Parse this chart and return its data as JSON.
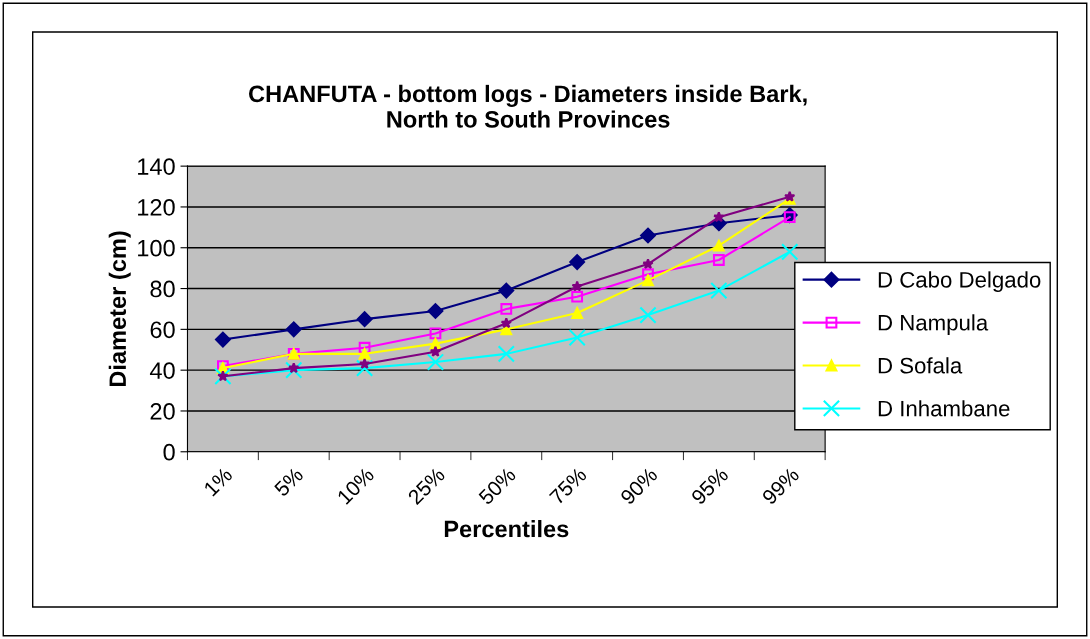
{
  "chart_data": {
    "type": "line",
    "title": "CHANFUTA - bottom logs - Diameters inside Bark,\nNorth to South Provinces",
    "xlabel": "Percentiles",
    "ylabel": "Diameter (cm)",
    "categories": [
      "1%",
      "5%",
      "10%",
      "25%",
      "50%",
      "75%",
      "90%",
      "95%",
      "99%"
    ],
    "series": [
      {
        "name": "D Cabo Delgado",
        "color": "#000080",
        "marker": "diamond",
        "values": [
          55,
          60,
          65,
          69,
          79,
          93,
          106,
          112,
          116
        ]
      },
      {
        "name": "D Nampula",
        "color": "#ff00ff",
        "marker": "square",
        "values": [
          42,
          48,
          51,
          58,
          70,
          76,
          87,
          94,
          115
        ]
      },
      {
        "name": "D Sofala",
        "color": "#ffff00",
        "marker": "triangle",
        "values": [
          41,
          48,
          48,
          53,
          60,
          68,
          84,
          101,
          124
        ]
      },
      {
        "name": "D Inhambane",
        "color": "#00ffff",
        "marker": "cross",
        "values": [
          37,
          40,
          41,
          44,
          48,
          56,
          67,
          79,
          98
        ]
      },
      {
        "color": "#800080",
        "marker": "star",
        "values": [
          37,
          41,
          43,
          49,
          63,
          81,
          92,
          115,
          125
        ]
      }
    ],
    "ylim": [
      0,
      140
    ],
    "yticks": [
      0,
      20,
      40,
      60,
      80,
      100,
      120,
      140
    ],
    "grid": "y",
    "legend": "right"
  }
}
